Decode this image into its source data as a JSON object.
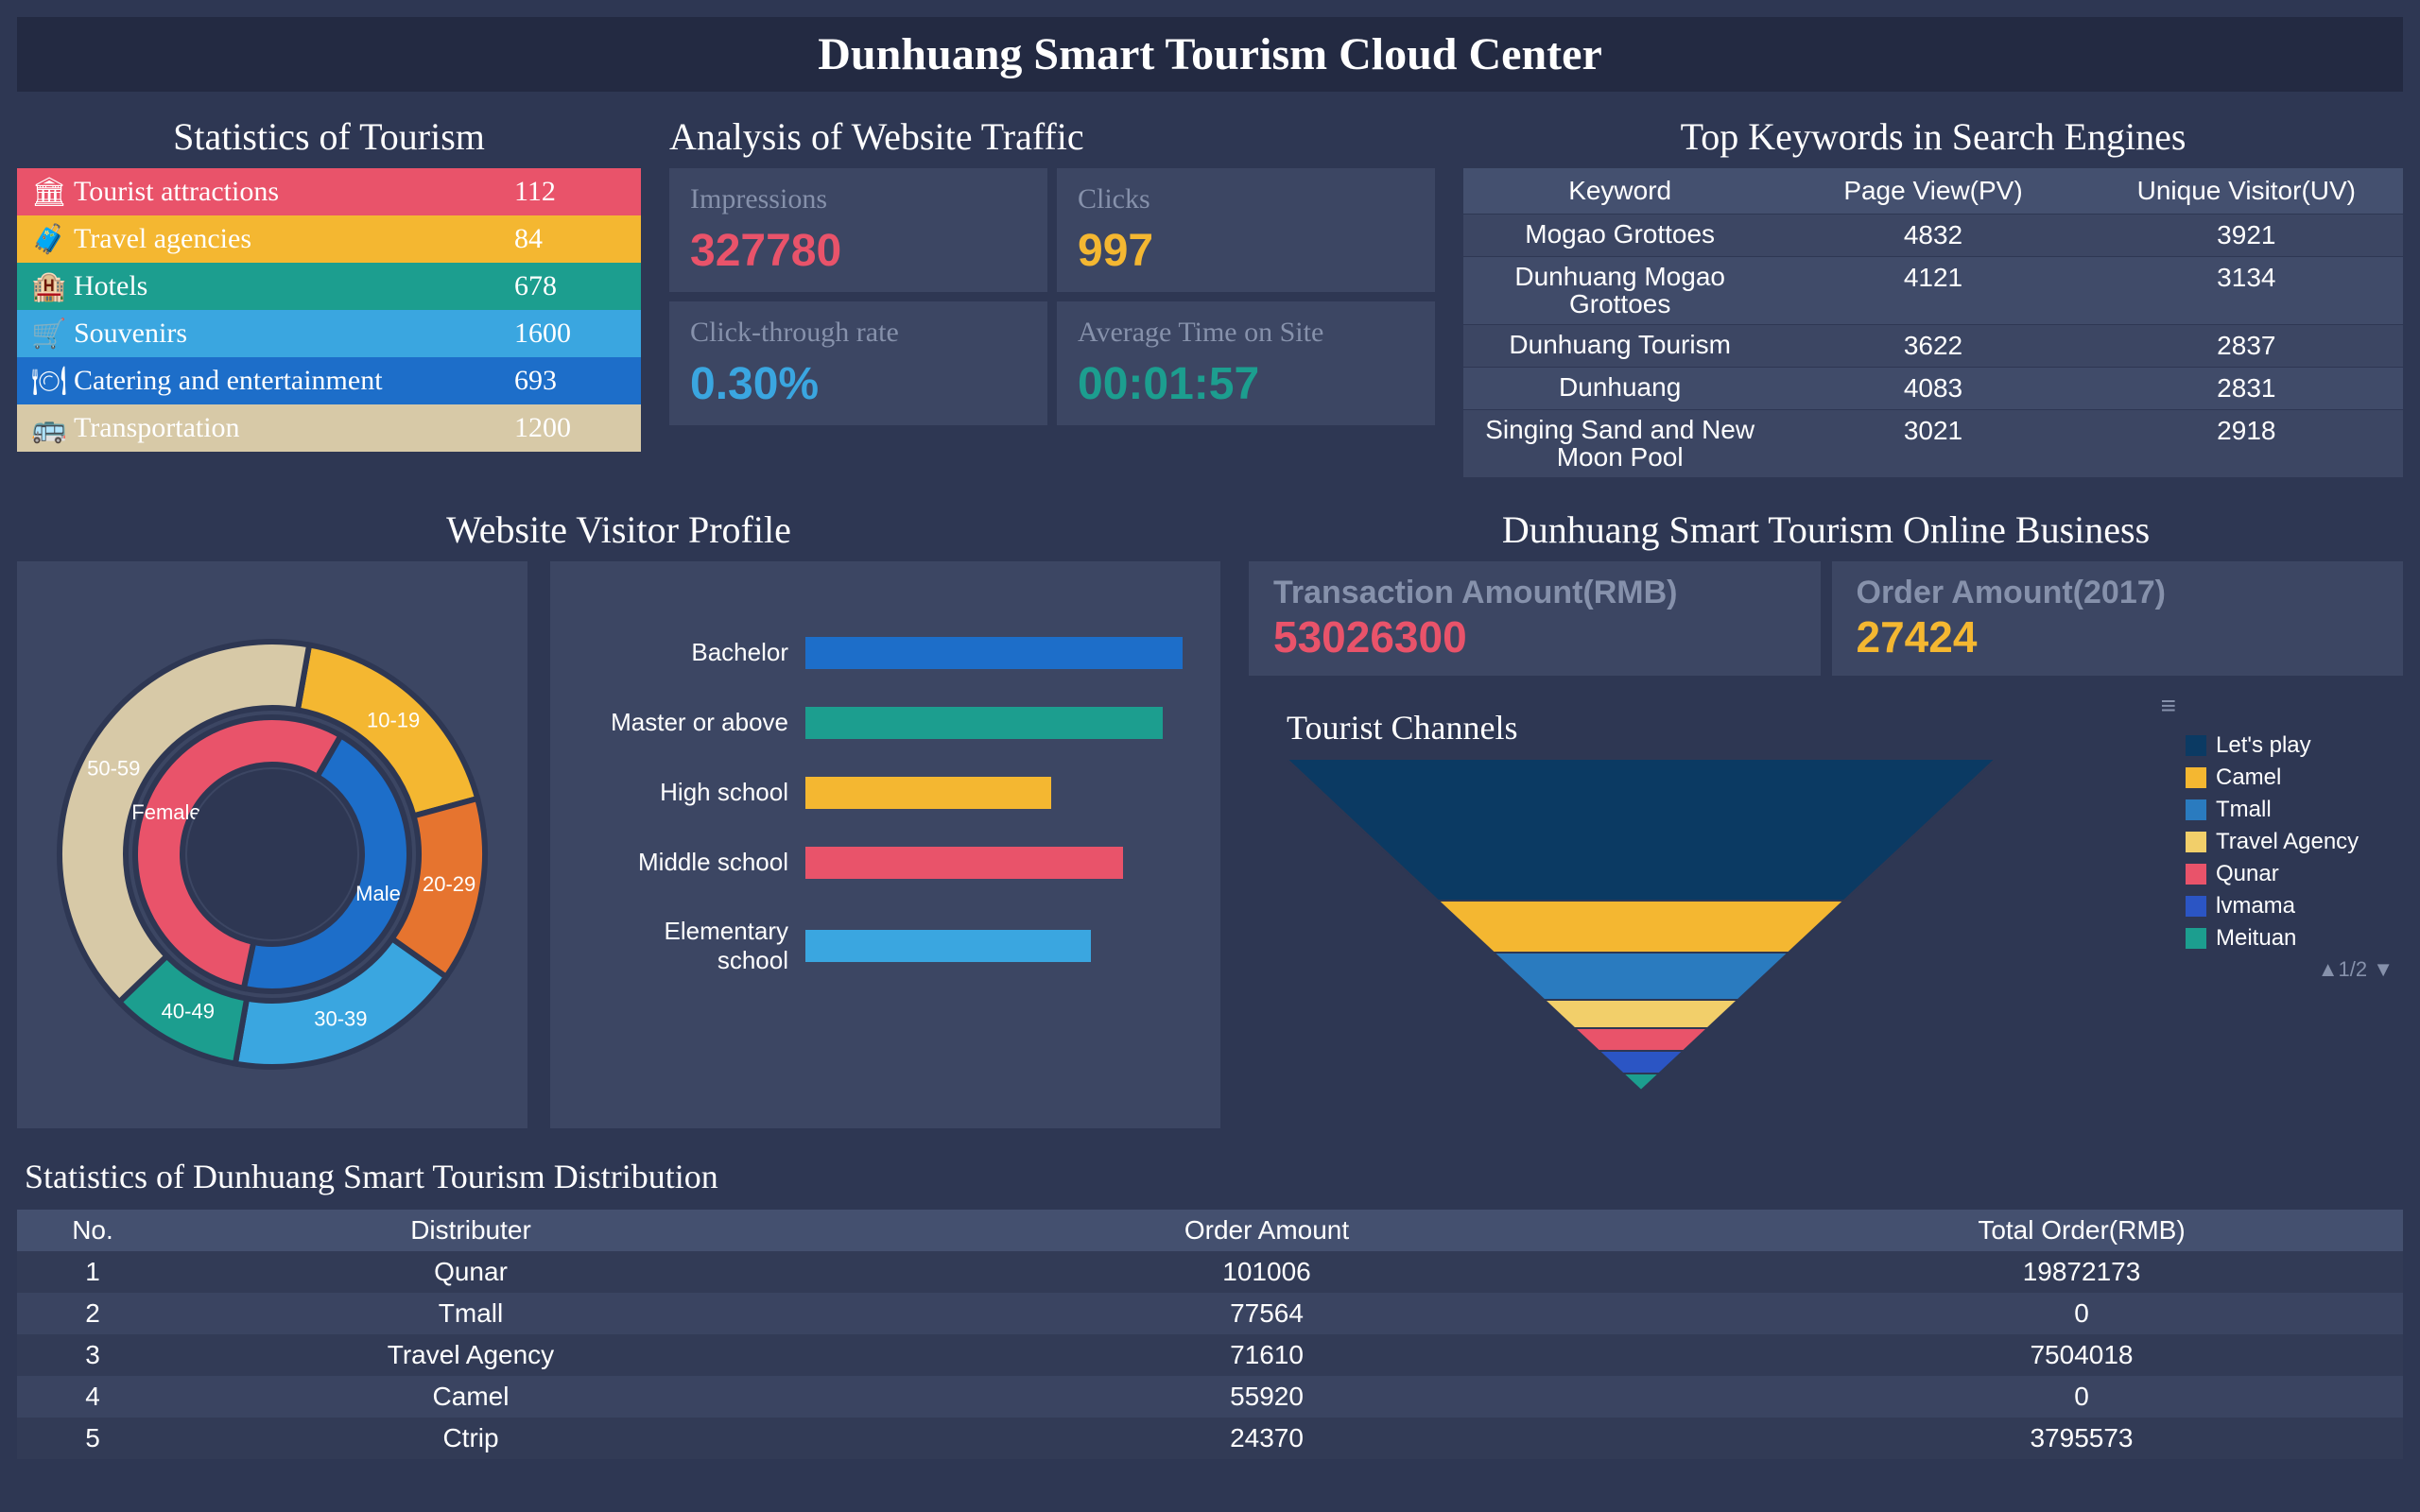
{
  "header": {
    "title": "Dunhuang Smart Tourism Cloud Center"
  },
  "resources": {
    "title": "Statistics of Tourism",
    "rows": [
      {
        "label": "Tourist attractions",
        "value": "112",
        "bg": "#e9536a",
        "icon": "🏛"
      },
      {
        "label": "Travel agencies",
        "value": "84",
        "bg": "#f4b731",
        "icon": "🧳"
      },
      {
        "label": "Hotels",
        "value": "678",
        "bg": "#1c9e8f",
        "icon": "🏨"
      },
      {
        "label": "Souvenirs",
        "value": "1600",
        "bg": "#3aa6e0",
        "icon": "🛒"
      },
      {
        "label": "Catering and entertainment",
        "value": "693",
        "bg": "#1d6ec9",
        "icon": "🍽"
      },
      {
        "label": "Transportation",
        "value": "1200",
        "bg": "#d7c9a7",
        "icon": "🚌"
      }
    ]
  },
  "traffic": {
    "title": "Analysis of Website Traffic",
    "cards": [
      {
        "k": "Impressions",
        "v": "327780",
        "color": "#e9536a"
      },
      {
        "k": "Clicks",
        "v": "997",
        "color": "#f4b731"
      },
      {
        "k": "Click-through rate",
        "v": "0.30%",
        "color": "#3aa6e0"
      },
      {
        "k": "Average Time on Site",
        "v": "00:01:57",
        "color": "#1c9e8f"
      }
    ]
  },
  "keywords": {
    "title": "Top Keywords in Search Engines",
    "columns": [
      "Keyword",
      "Page View(PV)",
      "Unique Visitor(UV)"
    ],
    "rows": [
      [
        "Mogao Grottoes",
        "4832",
        "3921"
      ],
      [
        "Dunhuang Mogao Grottoes",
        "4121",
        "3134"
      ],
      [
        "Dunhuang Tourism",
        "3622",
        "2837"
      ],
      [
        "Dunhuang",
        "4083",
        "2831"
      ],
      [
        "Singing Sand and New Moon Pool",
        "3021",
        "2918"
      ]
    ]
  },
  "profile": {
    "title": "Website Visitor Profile",
    "donut": {
      "inner": [
        {
          "label": "Male",
          "value": 45,
          "color": "#1d6ec9"
        },
        {
          "label": "Female",
          "value": 55,
          "color": "#e9536a"
        }
      ],
      "outer": [
        {
          "label": "10-19",
          "value": 18,
          "color": "#f4b731"
        },
        {
          "label": "20-29",
          "value": 14,
          "color": "#e6742f"
        },
        {
          "label": "30-39",
          "value": 18,
          "color": "#3aa6e0"
        },
        {
          "label": "40-49",
          "value": 10,
          "color": "#1c9e8f"
        },
        {
          "label": "50-59",
          "value": 40,
          "color": "#d7c9a7"
        }
      ],
      "center_bg": "#2e3753",
      "gap_color": "#2e3753"
    },
    "bars": [
      {
        "label": "Bachelor",
        "pct": 95,
        "color": "#1d6ec9"
      },
      {
        "label": "Master or above",
        "pct": 90,
        "color": "#1c9e8f"
      },
      {
        "label": "High school",
        "pct": 62,
        "color": "#f4b731"
      },
      {
        "label": "Middle school",
        "pct": 80,
        "color": "#e9536a"
      },
      {
        "label": "Elementary school",
        "pct": 72,
        "color": "#3aa6e0"
      }
    ]
  },
  "business": {
    "title": "Dunhuang Smart Tourism Online Business",
    "cards": [
      {
        "k": "Transaction Amount(RMB)",
        "v": "53026300",
        "color": "#e9536a"
      },
      {
        "k": "Order Amount(2017)",
        "v": "27424",
        "color": "#f4b731"
      }
    ],
    "funnel": {
      "title": "Tourist Channels",
      "pager": "1/2",
      "slices": [
        {
          "label": "Let's play",
          "color": "#0b3a63",
          "pct": 100,
          "h": 150
        },
        {
          "label": "Camel",
          "color": "#f4b731",
          "pct": 80,
          "h": 55
        },
        {
          "label": "Tmall",
          "color": "#2a7bbf",
          "pct": 64,
          "h": 50
        },
        {
          "label": "Travel Agency",
          "color": "#f2cf6a",
          "pct": 50,
          "h": 30
        },
        {
          "label": "Qunar",
          "color": "#e9536a",
          "pct": 40,
          "h": 24
        },
        {
          "label": "lvmama",
          "color": "#2b55c4",
          "pct": 30,
          "h": 24
        },
        {
          "label": "Meituan",
          "color": "#1c9e8f",
          "pct": 18,
          "h": 18
        }
      ]
    }
  },
  "distribution": {
    "title": "Statistics of Dunhuang Smart Tourism Distribution",
    "columns": [
      "No.",
      "Distributer",
      "Order Amount",
      "Total Order(RMB)"
    ],
    "rows": [
      [
        "1",
        "Qunar",
        "101006",
        "19872173"
      ],
      [
        "2",
        "Tmall",
        "77564",
        "0"
      ],
      [
        "3",
        "Travel Agency",
        "71610",
        "7504018"
      ],
      [
        "4",
        "Camel",
        "55920",
        "0"
      ],
      [
        "5",
        "Ctrip",
        "24370",
        "3795573"
      ]
    ]
  }
}
